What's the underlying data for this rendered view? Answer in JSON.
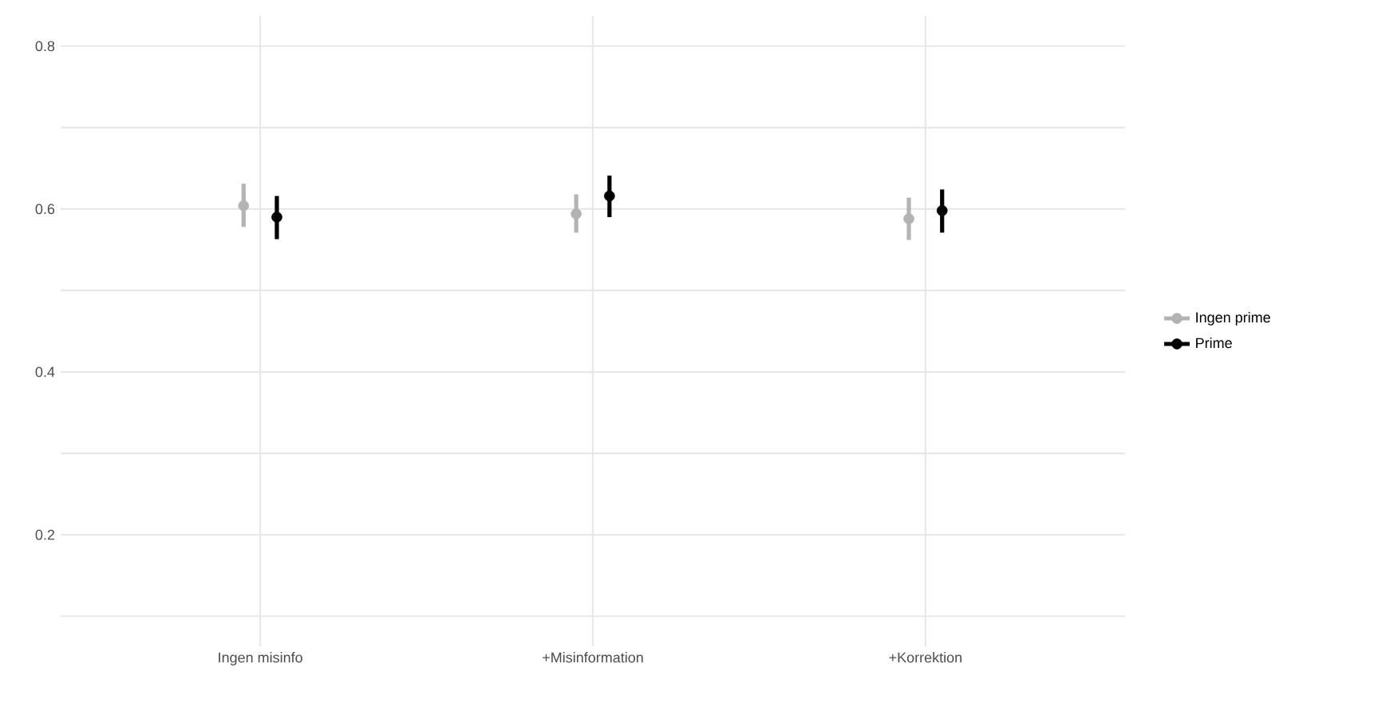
{
  "chart_data": {
    "type": "scatter",
    "categories": [
      "Ingen misinfo",
      "+Misinformation",
      "+Korrektion"
    ],
    "series": [
      {
        "name": "Ingen prime",
        "color": "#b3b3b3",
        "values": [
          0.604,
          0.594,
          0.588
        ],
        "errors": [
          [
            0.578,
            0.631
          ],
          [
            0.571,
            0.618
          ],
          [
            0.562,
            0.614
          ]
        ]
      },
      {
        "name": "Prime",
        "color": "#000000",
        "values": [
          0.59,
          0.616,
          0.598
        ],
        "errors": [
          [
            0.563,
            0.616
          ],
          [
            0.59,
            0.641
          ],
          [
            0.571,
            0.624
          ]
        ]
      }
    ],
    "ylim": [
      0.063,
      0.837
    ],
    "yticks": [
      {
        "value": 0.1,
        "label": null
      },
      0.2,
      {
        "value": 0.3,
        "label": null
      },
      0.4,
      {
        "value": 0.5,
        "label": null
      },
      0.6,
      {
        "value": 0.7,
        "label": null
      },
      0.8
    ],
    "grid": true,
    "legend": "right",
    "marker": "circle"
  }
}
